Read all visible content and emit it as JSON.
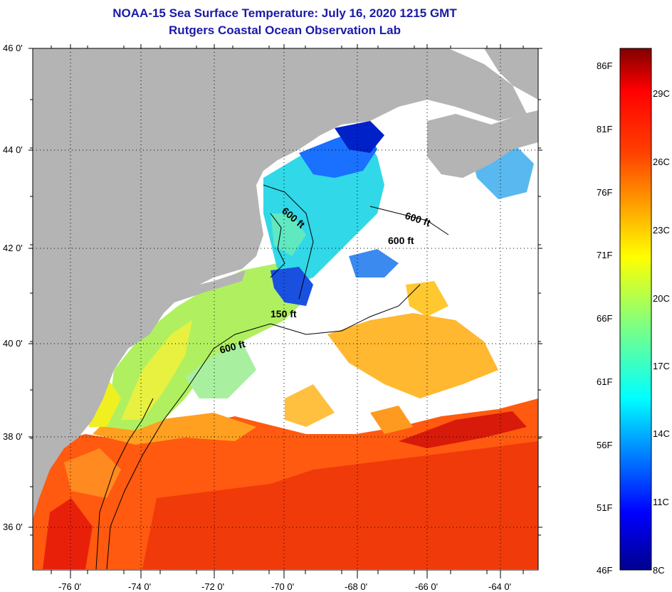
{
  "title": "NOAA-15 Sea Surface Temperature:  July 16, 2020 1215 GMT",
  "subtitle": "Rutgers Coastal Ocean Observation Lab",
  "lat_labels": [
    "46 0'",
    "44 0'",
    "42 0'",
    "40 0'",
    "38 0'",
    "36 0'"
  ],
  "lon_labels": [
    "-76 0'",
    "-74 0'",
    "-72 0'",
    "-70 0'",
    "-68 0'",
    "-66 0'",
    "-64 0'"
  ],
  "contours": [
    "600 ft",
    "600 ft",
    "600 ft",
    "150 ft",
    "600 ft"
  ],
  "colorbar": {
    "f_labels": [
      "86F",
      "81F",
      "76F",
      "71F",
      "66F",
      "61F",
      "56F",
      "51F",
      "46F"
    ],
    "c_labels": [
      "29C",
      "26C",
      "23C",
      "20C",
      "17C",
      "14C",
      "11C",
      "8C"
    ]
  },
  "colors": {
    "land": "#b4b4b4",
    "title": "#1a1aa8"
  }
}
